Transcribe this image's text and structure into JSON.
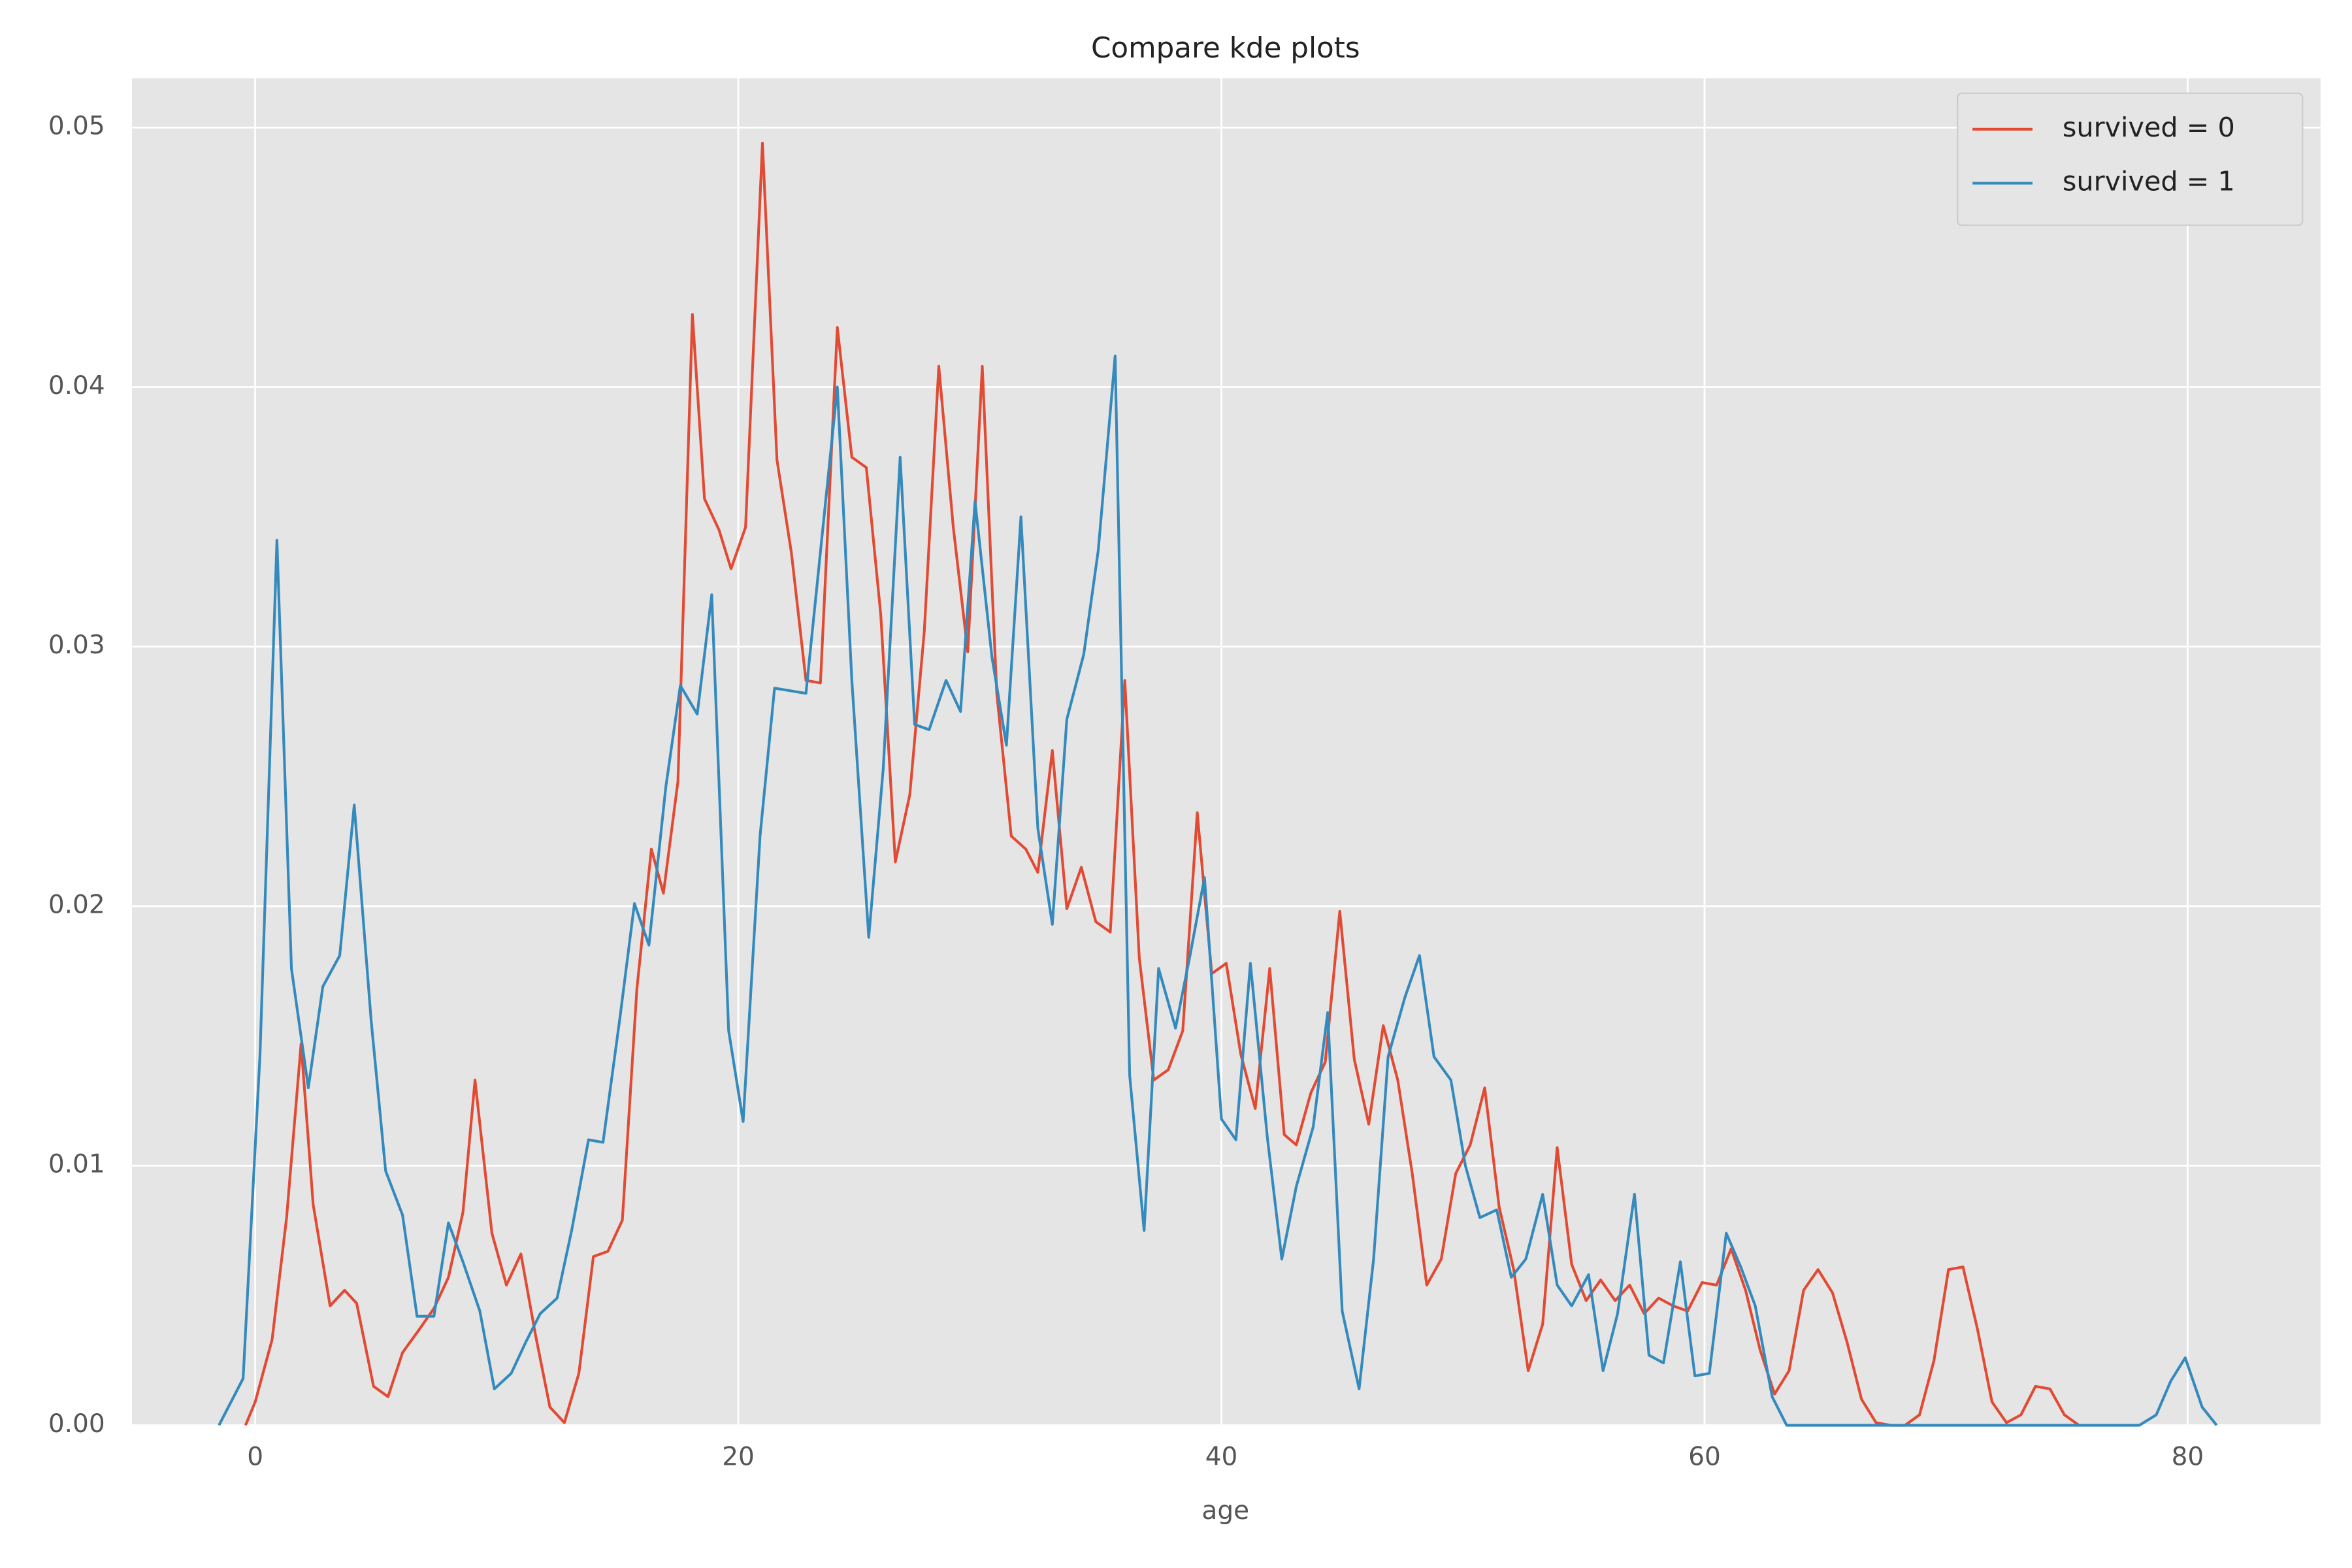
{
  "chart_data": {
    "type": "line",
    "title": "Compare kde plots",
    "xlabel": "age",
    "xlim": [
      -5.1,
      85.5
    ],
    "ylim": [
      0,
      0.0519
    ],
    "xticks": [
      0,
      20,
      40,
      60,
      80
    ],
    "yticks": [
      {
        "value": 0,
        "label": "0.00"
      },
      0.01,
      0.02,
      0.03,
      0.04,
      0.05
    ],
    "grid": true,
    "legend": "upper right",
    "background": "#e5e5e5",
    "series": [
      {
        "name": "survived = 0",
        "color": "#e24a33",
        "x": [
          -0.4,
          0,
          0.7,
          1.3,
          1.9,
          2.4,
          3.1,
          3.7,
          4.2,
          4.9,
          5.5,
          6.1,
          6.8,
          7.4,
          8,
          8.6,
          9.1,
          9.8,
          10.4,
          11,
          11.6,
          12.2,
          12.8,
          13.4,
          14,
          14.6,
          15.2,
          15.8,
          16.4,
          16.9,
          17.5,
          18.1,
          18.6,
          19.2,
          19.7,
          20.3,
          21,
          21.6,
          22.2,
          22.8,
          23.4,
          24.1,
          24.7,
          25.3,
          25.9,
          26.5,
          27.1,
          27.7,
          28.3,
          28.9,
          29.5,
          30.1,
          30.7,
          31.3,
          31.9,
          32.4,
          33,
          33.6,
          34.2,
          34.8,
          35.4,
          36,
          36.6,
          37.2,
          37.8,
          38.4,
          39,
          39.6,
          40.2,
          40.8,
          41.4,
          42,
          42.6,
          43.1,
          43.7,
          44.3,
          44.9,
          45.5,
          46.1,
          46.7,
          47.3,
          47.9,
          48.5,
          49.1,
          49.7,
          50.3,
          50.9,
          51.5,
          52.1,
          52.7,
          53.3,
          53.9,
          54.5,
          55.1,
          55.7,
          56.3,
          56.9,
          57.5,
          58.1,
          58.7,
          59.3,
          59.9,
          60.5,
          61.1,
          61.7,
          62.3,
          62.9,
          63.5,
          64.1,
          64.7,
          65.3,
          65.9,
          66.5,
          67.1,
          67.7,
          68.3,
          68.9,
          69.5,
          70.1,
          70.7,
          71.3,
          71.9,
          72.5,
          73.1,
          73.7,
          74.3,
          74.9,
          75.5
        ],
        "values": [
          0,
          0.0009,
          0.0033,
          0.008,
          0.0147,
          0.0085,
          0.0046,
          0.0052,
          0.0047,
          0.0015,
          0.0011,
          0.0028,
          0.0037,
          0.0045,
          0.0057,
          0.0082,
          0.0133,
          0.0074,
          0.0054,
          0.0066,
          0.0035,
          0.0007,
          0.0001,
          0.002,
          0.0065,
          0.0067,
          0.0079,
          0.0168,
          0.0222,
          0.0205,
          0.0248,
          0.0428,
          0.0357,
          0.0345,
          0.033,
          0.0346,
          0.0494,
          0.0372,
          0.0336,
          0.0287,
          0.0286,
          0.0423,
          0.0373,
          0.0369,
          0.0312,
          0.0217,
          0.0243,
          0.0306,
          0.0408,
          0.0346,
          0.0298,
          0.0408,
          0.0282,
          0.0227,
          0.0222,
          0.0213,
          0.026,
          0.0199,
          0.0215,
          0.0194,
          0.019,
          0.0287,
          0.018,
          0.0133,
          0.0137,
          0.0152,
          0.0236,
          0.0174,
          0.0178,
          0.0143,
          0.0122,
          0.0176,
          0.0112,
          0.0108,
          0.0128,
          0.014,
          0.0198,
          0.0141,
          0.0116,
          0.0154,
          0.0133,
          0.0097,
          0.0054,
          0.0064,
          0.0097,
          0.0108,
          0.013,
          0.0084,
          0.006,
          0.0021,
          0.0039,
          0.0107,
          0.0062,
          0.0048,
          0.0056,
          0.0048,
          0.0054,
          0.0043,
          0.0049,
          0.0046,
          0.0044,
          0.0055,
          0.0054,
          0.0068,
          0.0052,
          0.0029,
          0.0012,
          0.0021,
          0.0052,
          0.006,
          0.0051,
          0.0032,
          0.001,
          0.0001,
          0,
          0,
          0.0004,
          0.0025,
          0.006,
          0.0061,
          0.0037,
          0.0009,
          0.0001,
          0.0004,
          0.0015,
          0.0014,
          0.0004,
          0
        ]
      },
      {
        "name": "survived = 1",
        "color": "#348abd",
        "x": [
          -1.5,
          -0.5,
          0.2,
          0.9,
          1.5,
          2.2,
          2.8,
          3.5,
          4.1,
          4.8,
          5.4,
          6.1,
          6.7,
          7.4,
          8,
          8.6,
          9.3,
          9.9,
          10.6,
          11.2,
          11.8,
          12.5,
          13.1,
          13.8,
          14.4,
          15.1,
          15.7,
          16.3,
          17,
          17.6,
          18.3,
          18.9,
          19.6,
          20.2,
          20.9,
          21.5,
          22.8,
          24.1,
          24.7,
          25.4,
          26,
          26.7,
          27.3,
          27.9,
          28.6,
          29.2,
          29.8,
          30.5,
          31.1,
          31.7,
          32.4,
          33,
          33.6,
          34.3,
          34.9,
          35.6,
          36.2,
          36.8,
          37.4,
          38.1,
          38.7,
          39.3,
          40,
          40.6,
          41.2,
          41.9,
          42.5,
          43.1,
          43.8,
          44.4,
          45,
          45.7,
          46.3,
          46.9,
          47.6,
          48.2,
          48.8,
          49.5,
          50.1,
          50.7,
          51.4,
          52,
          52.6,
          53.3,
          53.9,
          54.5,
          55.2,
          55.8,
          56.4,
          57.1,
          57.7,
          58.3,
          59,
          59.6,
          60.2,
          60.9,
          61.5,
          62.1,
          62.8,
          63.4,
          64,
          78,
          78.7,
          79.3,
          79.9,
          80.6,
          81.2
        ],
        "values": [
          0,
          0.0018,
          0.0143,
          0.0341,
          0.0176,
          0.013,
          0.0169,
          0.0181,
          0.0239,
          0.0156,
          0.0098,
          0.0081,
          0.0042,
          0.0042,
          0.0078,
          0.0063,
          0.0044,
          0.0014,
          0.002,
          0.0032,
          0.0043,
          0.0049,
          0.0075,
          0.011,
          0.0109,
          0.0157,
          0.0201,
          0.0185,
          0.0246,
          0.0285,
          0.0274,
          0.032,
          0.0152,
          0.0117,
          0.0227,
          0.0284,
          0.0282,
          0.04,
          0.0287,
          0.0188,
          0.0253,
          0.0373,
          0.027,
          0.0268,
          0.0287,
          0.0275,
          0.0356,
          0.0296,
          0.0262,
          0.035,
          0.023,
          0.0193,
          0.0272,
          0.0297,
          0.0337,
          0.0412,
          0.0135,
          0.0075,
          0.0176,
          0.0153,
          0.0181,
          0.0211,
          0.0118,
          0.011,
          0.0178,
          0.0111,
          0.0064,
          0.0092,
          0.0115,
          0.0159,
          0.0044,
          0.0014,
          0.0064,
          0.0142,
          0.0165,
          0.0181,
          0.0142,
          0.0133,
          0.01,
          0.008,
          0.0083,
          0.0057,
          0.0064,
          0.0089,
          0.0054,
          0.0046,
          0.0058,
          0.0021,
          0.0043,
          0.0089,
          0.0027,
          0.0024,
          0.0063,
          0.0019,
          0.002,
          0.0074,
          0.0061,
          0.0046,
          0.0011,
          0,
          0,
          0,
          0.0004,
          0.0017,
          0.0026,
          0.0007,
          0
        ]
      }
    ]
  }
}
